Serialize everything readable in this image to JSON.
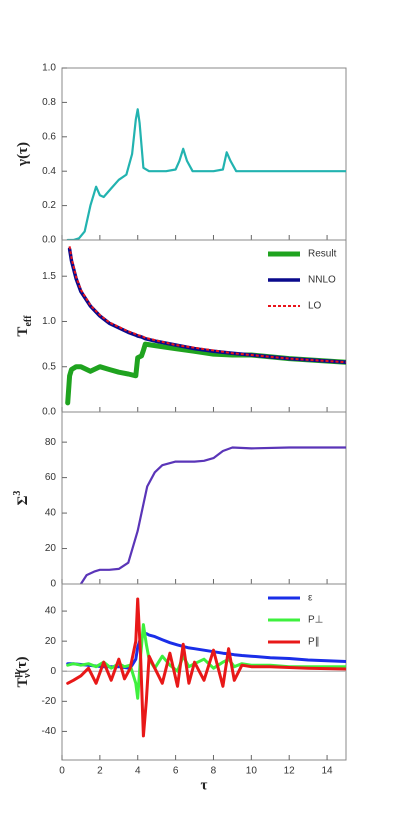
{
  "chart_data": [
    {
      "type": "line",
      "ylabel": "γ(τ)",
      "xlim": [
        0,
        15
      ],
      "ylim": [
        0,
        1
      ],
      "yticks": [
        {
          "value": 0,
          "label": "0.0"
        },
        0.2,
        0.4,
        0.6,
        0.8,
        {
          "value": 1,
          "label": "1.0"
        }
      ],
      "x": [
        0.3,
        0.6,
        0.9,
        1.2,
        1.5,
        1.8,
        2.0,
        2.2,
        2.6,
        3.0,
        3.4,
        3.7,
        3.9,
        4.0,
        4.1,
        4.3,
        4.6,
        5.0,
        5.5,
        6.0,
        6.2,
        6.4,
        6.6,
        6.9,
        7.5,
        8.0,
        8.5,
        8.7,
        8.9,
        9.2,
        10,
        12,
        15
      ],
      "series": [
        {
          "name": "γ",
          "color": "#22b3b0",
          "linewidth": 2.2,
          "values": [
            0,
            0,
            0.01,
            0.05,
            0.2,
            0.31,
            0.26,
            0.25,
            0.3,
            0.35,
            0.38,
            0.5,
            0.7,
            0.76,
            0.68,
            0.42,
            0.4,
            0.4,
            0.4,
            0.41,
            0.46,
            0.53,
            0.46,
            0.4,
            0.4,
            0.4,
            0.41,
            0.51,
            0.46,
            0.4,
            0.4,
            0.4,
            0.4
          ]
        }
      ]
    },
    {
      "type": "line",
      "ylabel": "T",
      "ylabel_sub": "eff",
      "xlim": [
        0,
        15
      ],
      "ylim": [
        0,
        1.9
      ],
      "legend": "upper right",
      "yticks": [
        {
          "value": 0,
          "label": "0.0"
        },
        0.5,
        {
          "value": 1,
          "label": "1.0"
        },
        1.5
      ],
      "x": [
        0.3,
        0.4,
        0.5,
        0.75,
        1,
        1.5,
        2,
        2.5,
        3,
        3.5,
        3.9,
        4.0,
        4.2,
        4.3,
        4.4,
        5,
        6,
        7,
        8,
        9,
        10,
        12,
        15
      ],
      "series": [
        {
          "name": "Result",
          "color": "#1fa31f",
          "linewidth": 5,
          "values": [
            0.1,
            0.4,
            0.47,
            0.5,
            0.5,
            0.45,
            0.5,
            0.47,
            0.44,
            0.42,
            0.4,
            0.6,
            0.62,
            0.68,
            0.75,
            0.73,
            0.7,
            0.67,
            0.64,
            0.63,
            0.63,
            0.59,
            0.55
          ]
        },
        {
          "name": "NNLO",
          "color": "#0a0a8c",
          "linewidth": 3.5,
          "values": [
            null,
            1.8,
            1.67,
            1.47,
            1.33,
            1.17,
            1.06,
            0.98,
            0.93,
            0.88,
            0.85,
            0.84,
            0.83,
            0.82,
            0.81,
            0.78,
            0.74,
            0.7,
            0.67,
            0.65,
            0.63,
            0.59,
            0.55
          ]
        },
        {
          "name": "LO",
          "color": "#e8141b",
          "linewidth": 2,
          "dash": true,
          "values": [
            null,
            1.83,
            1.7,
            1.49,
            1.35,
            1.18,
            1.07,
            0.99,
            0.94,
            0.89,
            0.86,
            0.85,
            0.84,
            0.83,
            0.82,
            0.79,
            0.74,
            0.71,
            0.68,
            0.65,
            0.63,
            0.59,
            0.55
          ]
        }
      ]
    },
    {
      "type": "line",
      "ylabel": "Σ",
      "ylabel_sup": "3",
      "xlim": [
        0,
        15
      ],
      "ylim": [
        0,
        97
      ],
      "yticks": [
        0,
        20,
        40,
        60,
        80
      ],
      "x": [
        1,
        1.3,
        1.7,
        2,
        2.5,
        3,
        3.5,
        4,
        4.5,
        4.9,
        5.3,
        6,
        7,
        7.5,
        8,
        8.5,
        9,
        10,
        12,
        15
      ],
      "series": [
        {
          "name": "Σ",
          "color": "#5a35b8",
          "linewidth": 2.2,
          "values": [
            0,
            5,
            7,
            8,
            8,
            8.5,
            12,
            30,
            55,
            63,
            67,
            69,
            69,
            69.5,
            71,
            75,
            77,
            76.5,
            77,
            77
          ]
        }
      ]
    },
    {
      "type": "line",
      "ylabel": "T",
      "ylabel_sup": "μ",
      "ylabel_sub": "ν",
      "ylabel_tail": "(τ)",
      "xlabel": "τ",
      "xlim": [
        0,
        15
      ],
      "ylim": [
        -59,
        58
      ],
      "legend": "upper right",
      "zero_line": true,
      "xticks": [
        0,
        2,
        4,
        6,
        8,
        10,
        12,
        14
      ],
      "yticks": [
        -40,
        -20,
        0,
        20,
        40
      ],
      "x": [
        0.3,
        0.6,
        1.0,
        1.4,
        1.8,
        2.2,
        2.6,
        3.0,
        3.3,
        3.6,
        3.9,
        4.0,
        4.15,
        4.3,
        4.45,
        4.6,
        4.9,
        5.3,
        5.7,
        6.1,
        6.4,
        6.7,
        7.0,
        7.5,
        8.0,
        8.5,
        8.8,
        9.1,
        9.5,
        10,
        11,
        12,
        13,
        15
      ],
      "series": [
        {
          "name": "ε",
          "color": "#1a2ee8",
          "linewidth": 3,
          "values": [
            5,
            5,
            4.5,
            4,
            3.5,
            3,
            3,
            3,
            2.5,
            2,
            8,
            16,
            22,
            25,
            25,
            24,
            23,
            21,
            19,
            17.5,
            16.5,
            15.5,
            15,
            14,
            13,
            12,
            11.5,
            11,
            10.5,
            10,
            9,
            8.5,
            7.5,
            6.5
          ]
        },
        {
          "name": "P⊥",
          "color": "#3ef03e",
          "linewidth": 3,
          "values": [
            4,
            5,
            4,
            5,
            3,
            6,
            2,
            5,
            3,
            4,
            -8,
            -18,
            10,
            31,
            18,
            8,
            2,
            10,
            4,
            0,
            10,
            3,
            5,
            8,
            2,
            6,
            8,
            3,
            5,
            4,
            4,
            3,
            3,
            3
          ]
        },
        {
          "name": "P∥",
          "color": "#e81818",
          "linewidth": 3,
          "values": [
            -8,
            -6,
            -3,
            2,
            -8,
            6,
            -6,
            8,
            -5,
            2,
            20,
            48,
            10,
            -43,
            -20,
            10,
            2,
            -8,
            12,
            -10,
            18,
            -8,
            6,
            -6,
            14,
            -10,
            15,
            -6,
            4,
            3,
            3,
            2.5,
            2,
            1.5
          ]
        }
      ]
    }
  ]
}
